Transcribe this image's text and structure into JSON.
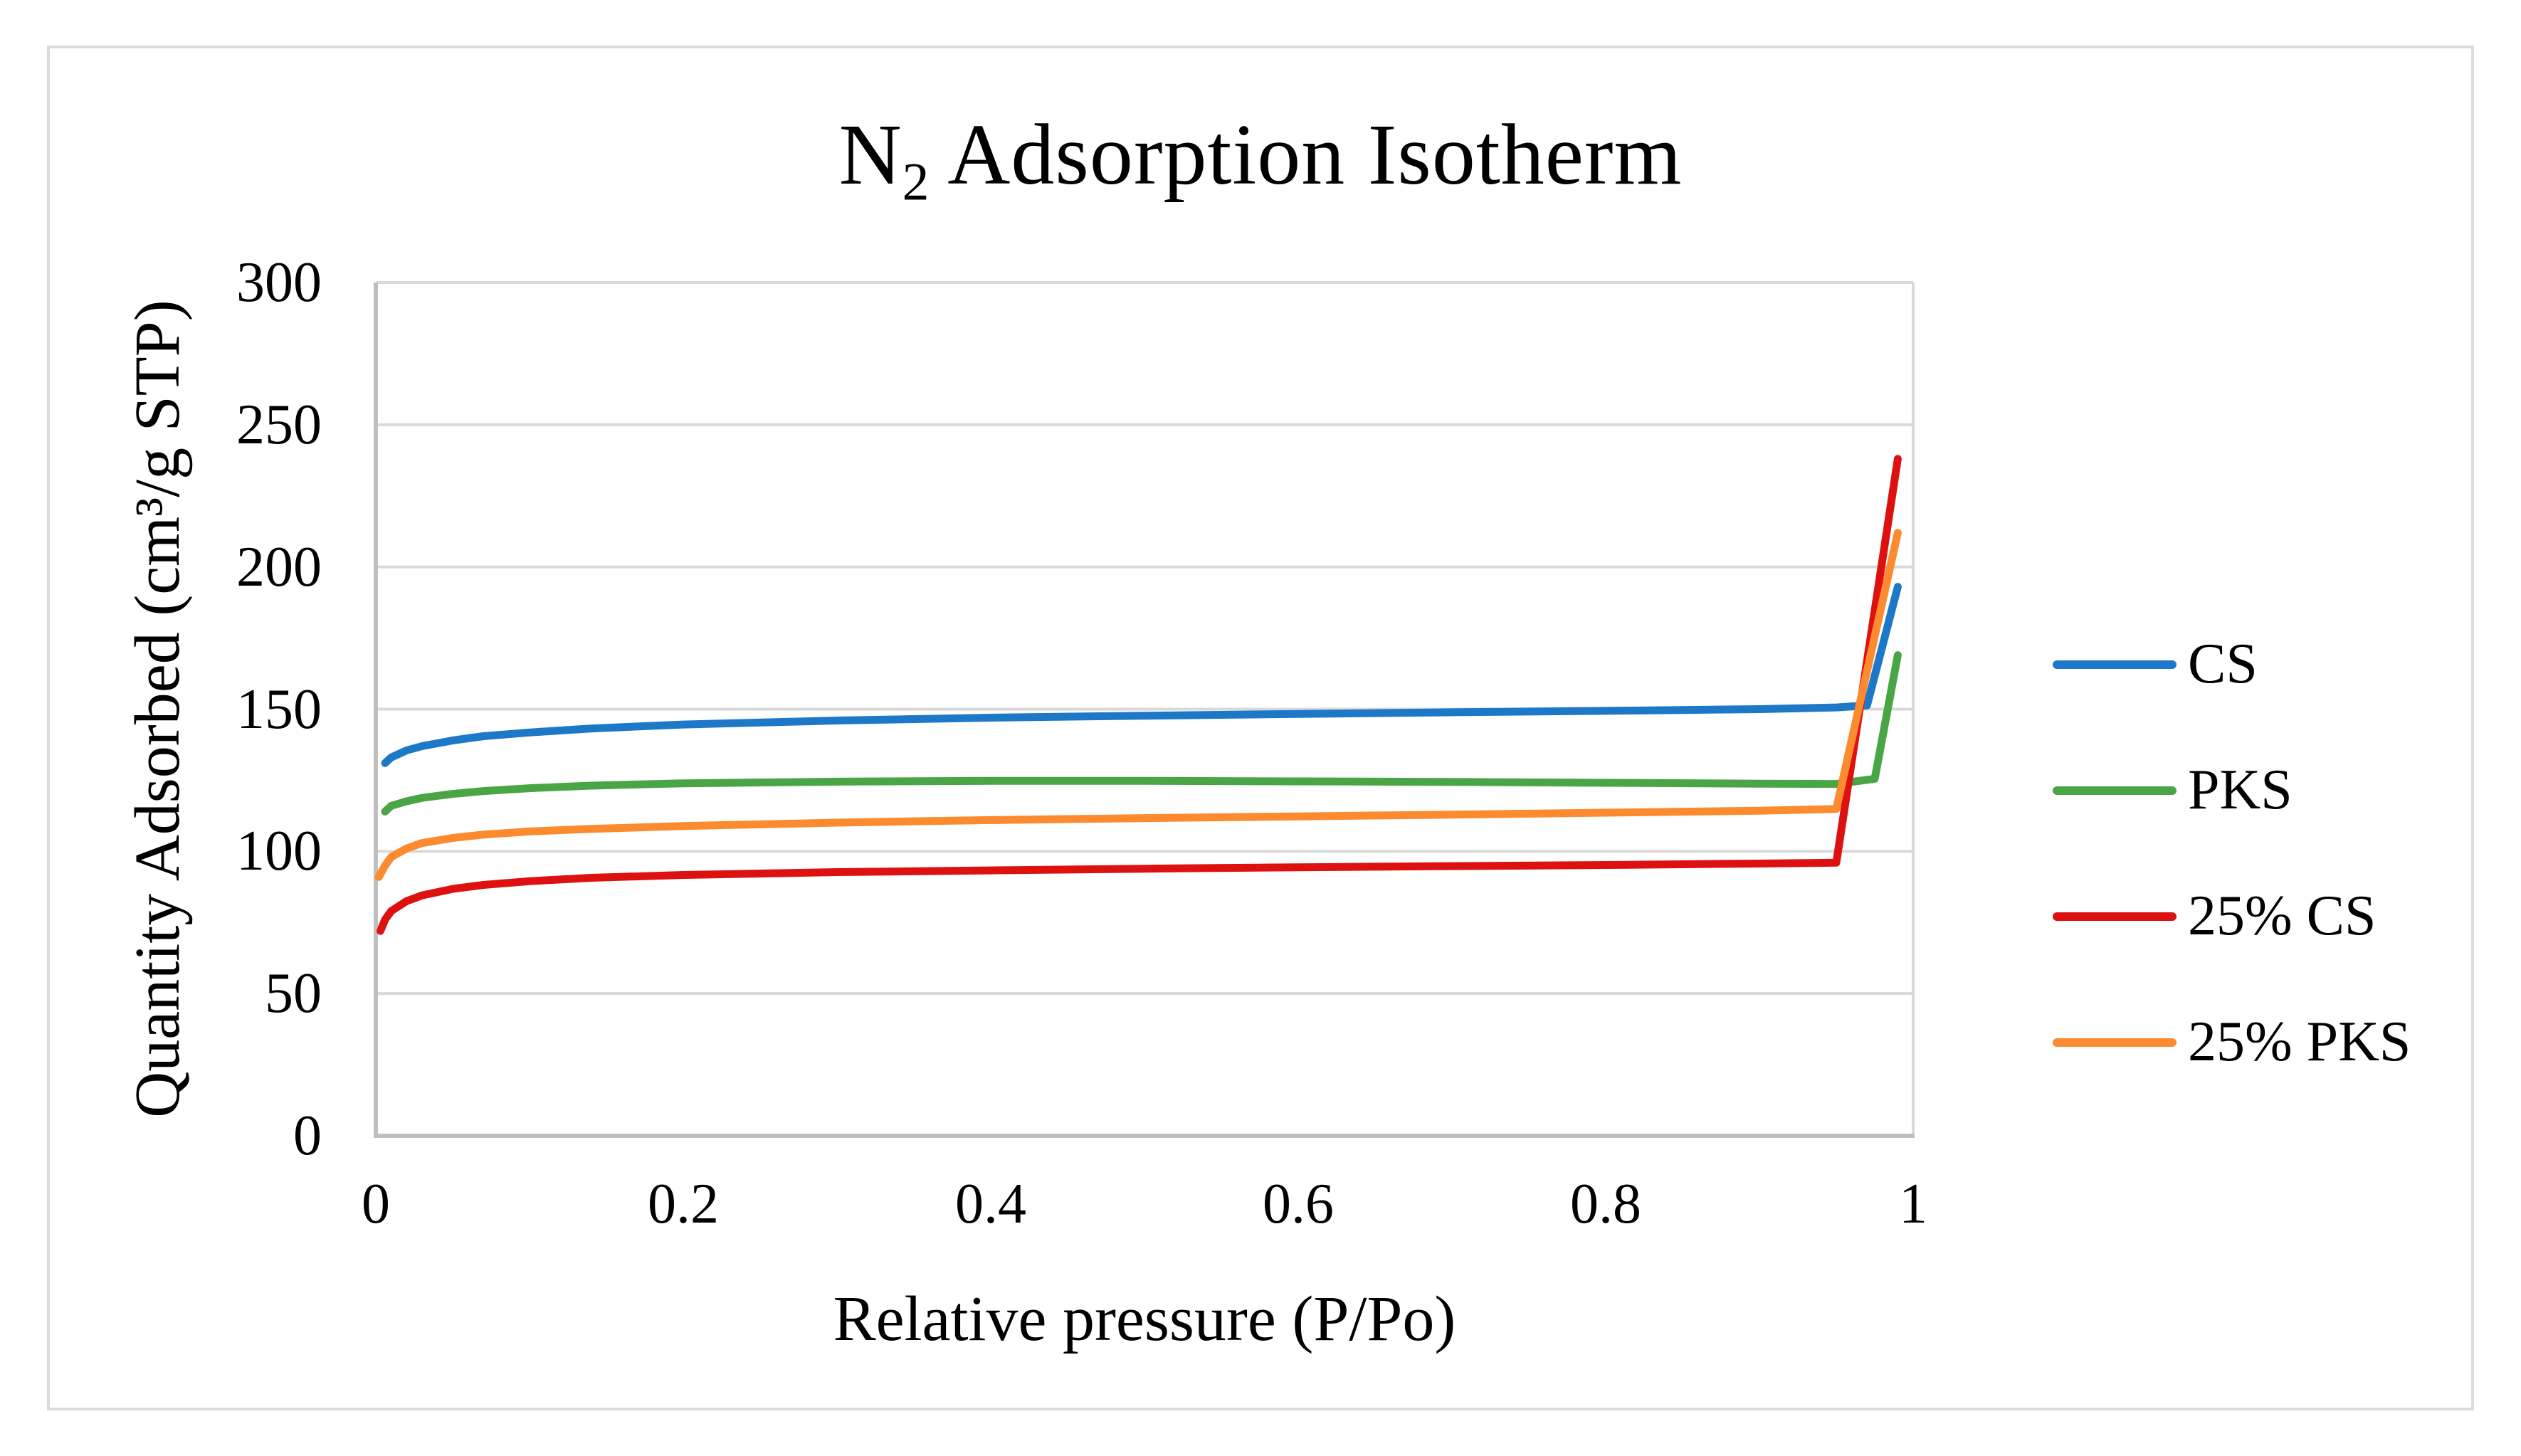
{
  "figure": {
    "background": "#ffffff",
    "border_color": "#dbdbdb"
  },
  "chart_data": {
    "type": "line",
    "title": {
      "prefix": "N",
      "subscript": "2",
      "rest": " Adsorption Isotherm",
      "full": "N2 Adsorption Isotherm"
    },
    "xlabel": "Relative pressure (P/Po)",
    "ylabel": "Quantity Adsorbed (cm³/g STP)",
    "xlim": [
      0,
      1
    ],
    "ylim": [
      0,
      300
    ],
    "x_ticks": [
      "0",
      "0.2",
      "0.4",
      "0.6",
      "0.8",
      "1"
    ],
    "x_tick_values": [
      0,
      0.2,
      0.4,
      0.6,
      0.8,
      1
    ],
    "y_ticks": [
      "0",
      "50",
      "100",
      "150",
      "200",
      "250",
      "300"
    ],
    "y_tick_values": [
      0,
      50,
      100,
      150,
      200,
      250,
      300
    ],
    "grid": "horizontal-on",
    "grid_color": "#d9d9d9",
    "axis_color": "#bfbfbf",
    "legend_position": "right",
    "series": [
      {
        "name": "CS",
        "color": "#1e78c8",
        "points": [
          [
            0.006,
            131
          ],
          [
            0.01,
            133
          ],
          [
            0.02,
            135.5
          ],
          [
            0.03,
            137
          ],
          [
            0.05,
            139
          ],
          [
            0.07,
            140.5
          ],
          [
            0.1,
            141.8
          ],
          [
            0.14,
            143.2
          ],
          [
            0.2,
            144.6
          ],
          [
            0.3,
            146
          ],
          [
            0.4,
            147
          ],
          [
            0.5,
            147.7
          ],
          [
            0.6,
            148.3
          ],
          [
            0.7,
            148.9
          ],
          [
            0.8,
            149.4
          ],
          [
            0.9,
            150
          ],
          [
            0.95,
            150.6
          ],
          [
            0.97,
            151.3
          ],
          [
            0.99,
            193
          ]
        ]
      },
      {
        "name": "PKS",
        "color": "#4aa546",
        "points": [
          [
            0.006,
            114
          ],
          [
            0.01,
            116
          ],
          [
            0.02,
            117.6
          ],
          [
            0.03,
            118.8
          ],
          [
            0.05,
            120.2
          ],
          [
            0.07,
            121.2
          ],
          [
            0.1,
            122.2
          ],
          [
            0.14,
            123.1
          ],
          [
            0.2,
            123.9
          ],
          [
            0.3,
            124.5
          ],
          [
            0.4,
            124.8
          ],
          [
            0.5,
            124.8
          ],
          [
            0.6,
            124.6
          ],
          [
            0.7,
            124.4
          ],
          [
            0.8,
            124.1
          ],
          [
            0.9,
            123.8
          ],
          [
            0.95,
            123.7
          ],
          [
            0.975,
            125.5
          ],
          [
            0.99,
            169
          ]
        ]
      },
      {
        "name": "25% CS",
        "color": "#de1111",
        "points": [
          [
            0.003,
            72
          ],
          [
            0.006,
            76
          ],
          [
            0.01,
            79
          ],
          [
            0.02,
            82.5
          ],
          [
            0.03,
            84.5
          ],
          [
            0.05,
            86.8
          ],
          [
            0.07,
            88.2
          ],
          [
            0.1,
            89.5
          ],
          [
            0.14,
            90.7
          ],
          [
            0.2,
            91.7
          ],
          [
            0.3,
            92.7
          ],
          [
            0.4,
            93.3
          ],
          [
            0.5,
            93.9
          ],
          [
            0.6,
            94.4
          ],
          [
            0.7,
            94.8
          ],
          [
            0.8,
            95.2
          ],
          [
            0.9,
            95.7
          ],
          [
            0.95,
            96
          ],
          [
            0.99,
            238
          ]
        ]
      },
      {
        "name": "25% PKS",
        "color": "#fc8a2e",
        "points": [
          [
            0.002,
            91
          ],
          [
            0.006,
            95
          ],
          [
            0.01,
            98
          ],
          [
            0.02,
            101
          ],
          [
            0.03,
            102.9
          ],
          [
            0.05,
            104.7
          ],
          [
            0.07,
            105.9
          ],
          [
            0.1,
            107
          ],
          [
            0.14,
            107.9
          ],
          [
            0.2,
            108.9
          ],
          [
            0.3,
            110.1
          ],
          [
            0.4,
            111
          ],
          [
            0.5,
            111.7
          ],
          [
            0.6,
            112.3
          ],
          [
            0.7,
            112.9
          ],
          [
            0.8,
            113.6
          ],
          [
            0.9,
            114.3
          ],
          [
            0.95,
            114.9
          ],
          [
            0.99,
            212
          ]
        ]
      }
    ]
  }
}
